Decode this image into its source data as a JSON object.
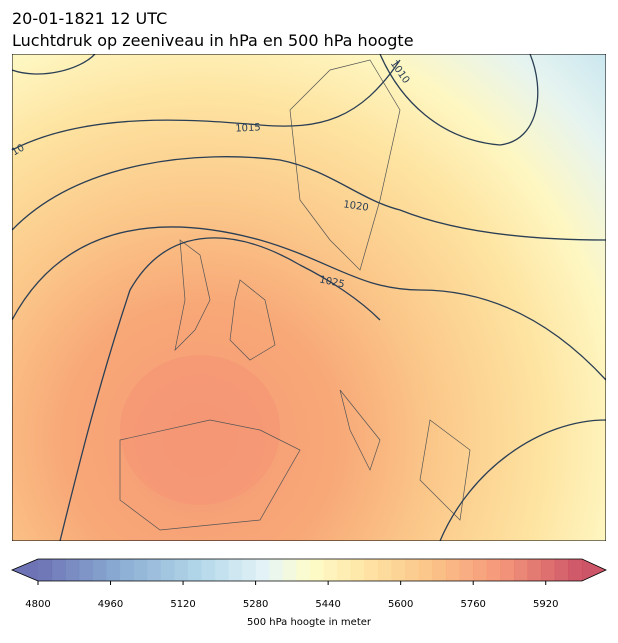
{
  "header": {
    "date": "20-01-1821 12 UTC",
    "description": "Luchtdruk op zeeniveau in hPa en 500 hPa hoogte"
  },
  "map": {
    "contour_labels": [
      "1010",
      "1015",
      "1020",
      "1025",
      "10"
    ]
  },
  "colorbar": {
    "lim": [
      4800,
      6000
    ],
    "ticks": [
      4800,
      4960,
      5120,
      5280,
      5440,
      5600,
      5760,
      5920
    ],
    "label": "500 hPa hoogte in meter"
  }
}
